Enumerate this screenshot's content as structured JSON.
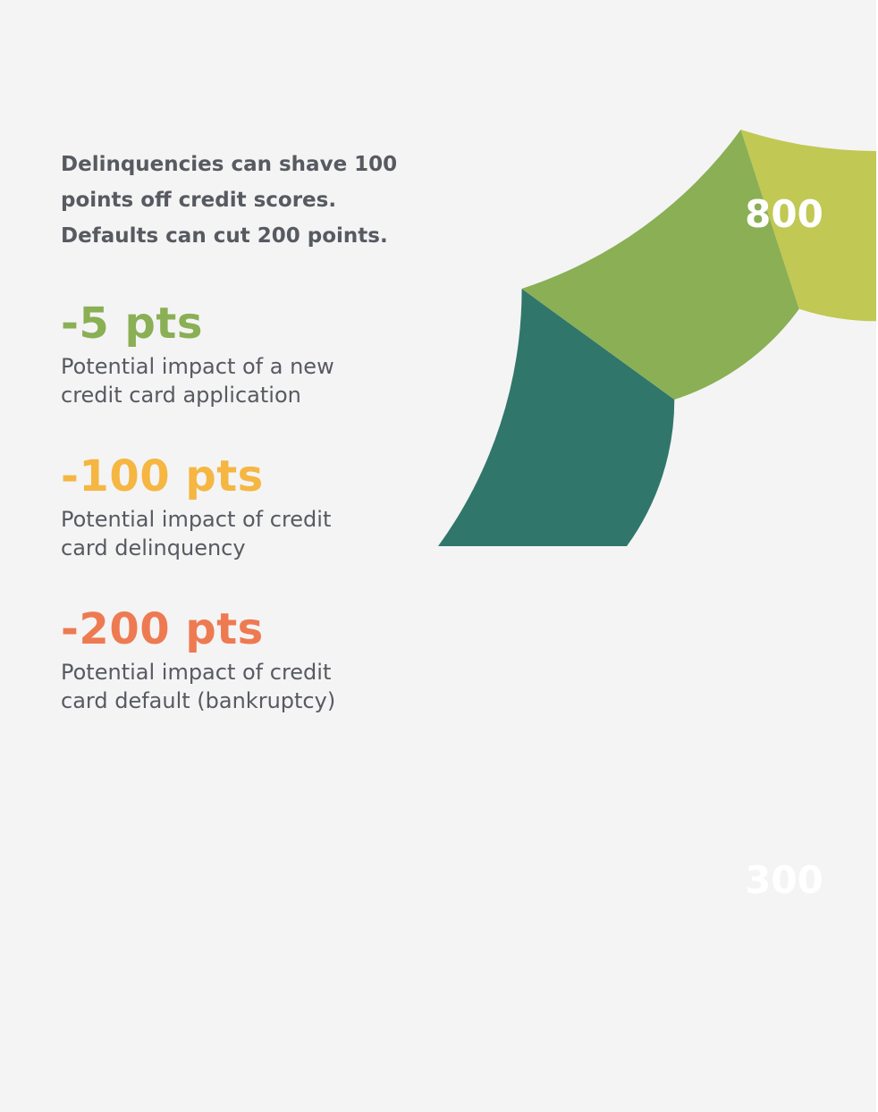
{
  "intro": {
    "lines": [
      "Delinquencies can shave 100",
      "points off credit scores.",
      "Defaults can cut 200 points."
    ]
  },
  "stats": [
    {
      "value": "-5 pts",
      "color": "#8aaf55",
      "description": [
        "Potential impact of a new",
        "credit card application"
      ]
    },
    {
      "value": "-100 pts",
      "color": "#f5b642",
      "description": [
        "Potential impact of credit",
        "card delinquency"
      ]
    },
    {
      "value": "-200 pts",
      "color": "#ee7a52",
      "description": [
        "Potential impact of credit",
        "card default (bankruptcy)"
      ]
    }
  ],
  "gauge": {
    "top_label": "800",
    "bottom_label": "300",
    "segment_colors": [
      "#31766b",
      "#8aaf55",
      "#c1c853",
      "#f5b642",
      "#ee7a52"
    ]
  },
  "colors": {
    "background": "#f4f4f4",
    "text": "#575a61"
  }
}
